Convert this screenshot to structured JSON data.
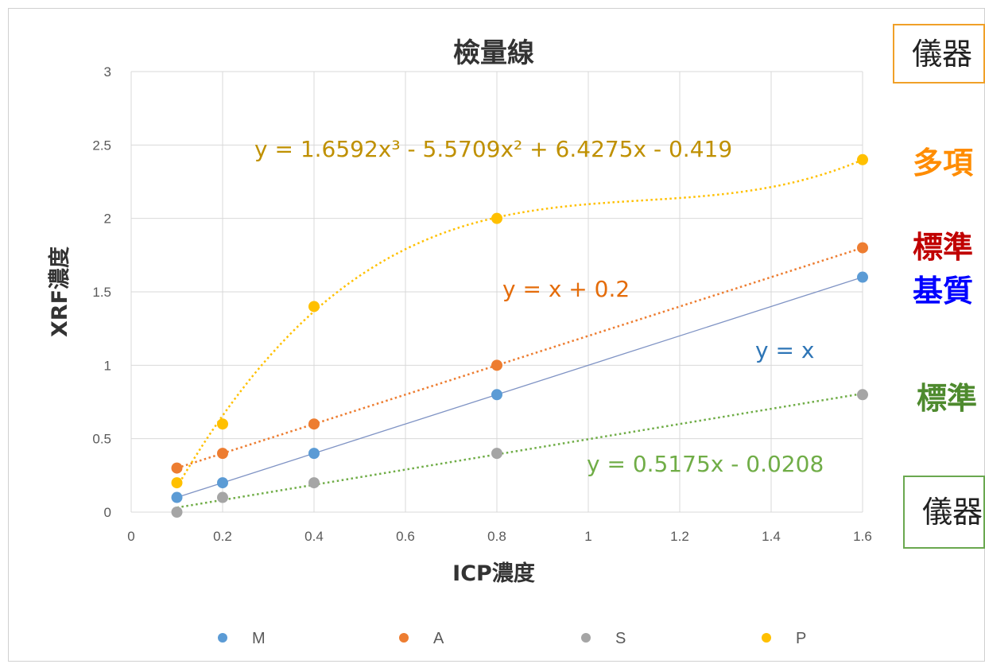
{
  "chart_data": {
    "type": "scatter",
    "title": "檢量線",
    "xlabel": "ICP濃度",
    "ylabel": "XRF濃度",
    "xlim": [
      0,
      1.6
    ],
    "ylim": [
      0,
      3
    ],
    "x_ticks": [
      "0",
      "0.2",
      "0.4",
      "0.6",
      "0.8",
      "1",
      "1.2",
      "1.4",
      "1.6"
    ],
    "y_ticks": [
      "0",
      "0.5",
      "1",
      "1.5",
      "2",
      "2.5",
      "3"
    ],
    "grid": true,
    "legend_position": "bottom",
    "series": [
      {
        "name": "M",
        "color": "#5b9bd5",
        "x": [
          0.1,
          0.2,
          0.4,
          0.8,
          1.6
        ],
        "y": [
          0.1,
          0.2,
          0.4,
          0.8,
          1.6
        ],
        "trendline": {
          "type": "linear",
          "style": "solid",
          "color": "#7f93c4",
          "label": "y = x",
          "label_color": "#2e75b6"
        }
      },
      {
        "name": "A",
        "color": "#ed7d31",
        "x": [
          0.1,
          0.2,
          0.4,
          0.8,
          1.6
        ],
        "y": [
          0.3,
          0.4,
          0.6,
          1.0,
          1.8
        ],
        "trendline": {
          "type": "linear",
          "style": "dotted",
          "color": "#ed7d31",
          "label": "y = x + 0.2",
          "label_color": "#e46c0a"
        }
      },
      {
        "name": "S",
        "color": "#a5a5a5",
        "x": [
          0.1,
          0.2,
          0.4,
          0.8,
          1.6
        ],
        "y": [
          0.0,
          0.1,
          0.2,
          0.4,
          0.8
        ],
        "trendline": {
          "type": "linear",
          "style": "dotted",
          "color": "#70ad47",
          "label": "y = 0.5175x - 0.0208",
          "label_color": "#70ad47"
        }
      },
      {
        "name": "P",
        "color": "#ffc000",
        "x": [
          0.1,
          0.2,
          0.4,
          0.8,
          1.6
        ],
        "y": [
          0.2,
          0.6,
          1.4,
          2.0,
          2.4
        ],
        "trendline": {
          "type": "polynomial",
          "order": 3,
          "style": "dotted",
          "color": "#ffc000",
          "label": "y = 1.6592x³ - 5.5709x² + 6.4275x - 0.419",
          "label_color": "#bf9000"
        }
      }
    ]
  },
  "callouts": {
    "top_box": "儀器",
    "line1": "多項",
    "line2": "標準",
    "line3": "基質",
    "line4": "標準",
    "bottom_box": "儀器"
  }
}
